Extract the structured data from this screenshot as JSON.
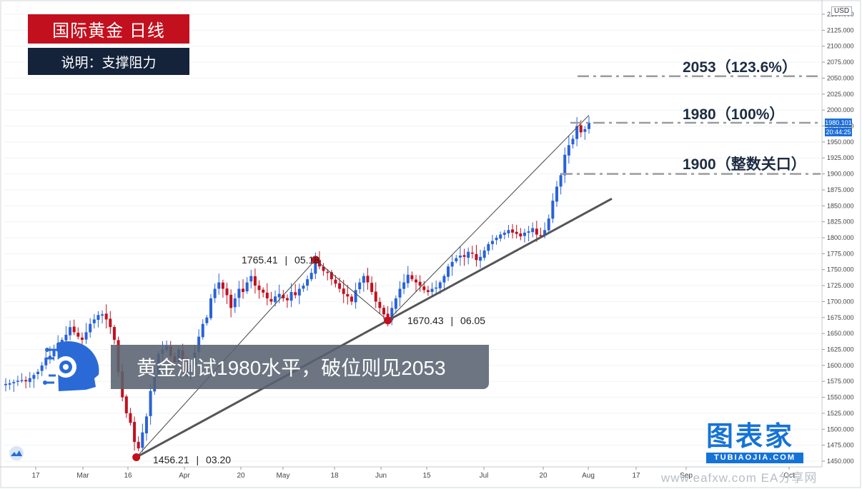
{
  "header": {
    "title": "国际黄金 日线",
    "subtitle": "说明：支撑阻力"
  },
  "caption": "黄金测试1980水平，破位则见2053",
  "brand": {
    "name": "图表家",
    "url": "TUBIAOJIA.COM"
  },
  "watermark": "www.eafxw.com EA分享网",
  "colors": {
    "up_candle": "#2962d9",
    "down_candle": "#c3101e",
    "title_bg": "#c3101e",
    "subtitle_bg": "#14233a",
    "pivot": "#c3101e",
    "level_line": "#9c9c9c",
    "trendline": "#555555"
  },
  "chart_data": {
    "type": "candlestick",
    "currency": "USD",
    "y_axis": {
      "min": 1450,
      "max": 2150,
      "step": 25,
      "tick_labels": [
        "1450.000",
        "1475.000",
        "1500.000",
        "1525.000",
        "1550.000",
        "1575.000",
        "1600.000",
        "1625.000",
        "1650.000",
        "1675.000",
        "1700.000",
        "1725.000",
        "1750.000",
        "1775.000",
        "1800.000",
        "1825.000",
        "1850.000",
        "1875.000",
        "1900.000",
        "1925.000",
        "1950.000",
        "1975.000",
        "2000.000",
        "2025.000",
        "2050.000",
        "2075.000",
        "2100.000",
        "2125.000",
        "2150.000"
      ]
    },
    "x_axis_labels": [
      "17",
      "Mar",
      "16",
      "Apr",
      "20",
      "May",
      "18",
      "Jun",
      "15",
      "Jul",
      "20",
      "Aug",
      "17",
      "Sep",
      "Oct"
    ],
    "last_price": "1980.101",
    "countdown": "20:44:25",
    "levels": [
      {
        "value": 2053,
        "label": "2053（123.6%）"
      },
      {
        "value": 1980,
        "label": "1980（100%）"
      },
      {
        "value": 1900,
        "label": "1900（整数关口）"
      }
    ],
    "pivots": [
      {
        "price": 1456.21,
        "price_label": "1456.21",
        "date_label": "03.20"
      },
      {
        "price": 1765.41,
        "price_label": "1765.41",
        "date_label": "05.18"
      },
      {
        "price": 1670.43,
        "price_label": "1670.43",
        "date_label": "06.05"
      }
    ],
    "closes": [
      1571,
      1572,
      1574,
      1576,
      1577,
      1575,
      1580,
      1585,
      1590,
      1600,
      1612,
      1615,
      1623,
      1635,
      1640,
      1648,
      1660,
      1652,
      1645,
      1640,
      1652,
      1665,
      1672,
      1679,
      1680,
      1672,
      1660,
      1640,
      1590,
      1550,
      1525,
      1510,
      1480,
      1470,
      1495,
      1520,
      1560,
      1585,
      1618,
      1625,
      1630,
      1615,
      1605,
      1625,
      1610,
      1590,
      1600,
      1620,
      1645,
      1665,
      1675,
      1705,
      1720,
      1730,
      1720,
      1710,
      1690,
      1705,
      1720,
      1715,
      1730,
      1740,
      1725,
      1718,
      1714,
      1705,
      1700,
      1708,
      1712,
      1705,
      1702,
      1715,
      1710,
      1720,
      1725,
      1735,
      1745,
      1765,
      1755,
      1748,
      1745,
      1735,
      1728,
      1720,
      1712,
      1708,
      1700,
      1718,
      1730,
      1740,
      1730,
      1715,
      1700,
      1690,
      1680,
      1670.43,
      1690,
      1705,
      1720,
      1730,
      1742,
      1735,
      1730,
      1725,
      1718,
      1715,
      1720,
      1722,
      1730,
      1740,
      1755,
      1762,
      1768,
      1772,
      1770,
      1778,
      1775,
      1765,
      1770,
      1780,
      1790,
      1795,
      1800,
      1805,
      1808,
      1812,
      1808,
      1806,
      1802,
      1808,
      1810,
      1815,
      1805,
      1803,
      1812,
      1830,
      1858,
      1880,
      1898,
      1930,
      1945,
      1955,
      1975,
      1965,
      1970,
      1980.1
    ]
  }
}
